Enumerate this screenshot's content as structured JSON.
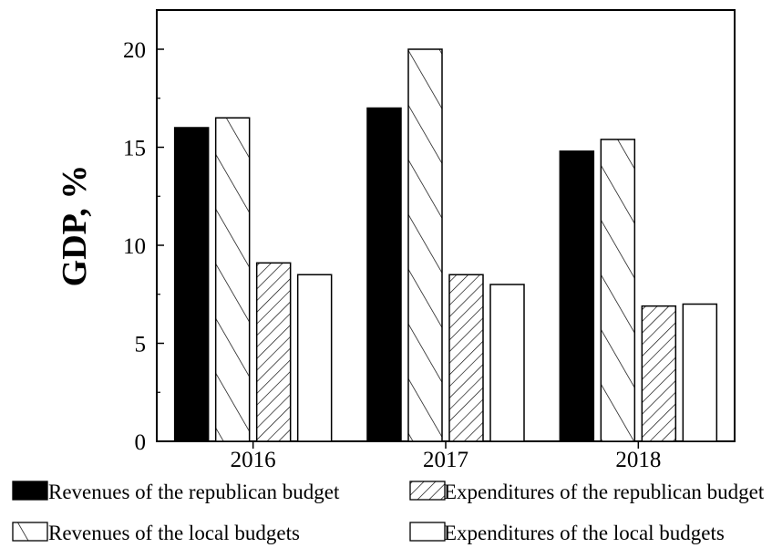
{
  "chart_data": {
    "type": "bar",
    "categories": [
      "2016",
      "2017",
      "2018"
    ],
    "series": [
      {
        "name": "Revenues of the republican budget",
        "values": [
          16.0,
          17.0,
          14.8
        ],
        "fill": "solid"
      },
      {
        "name": "Revenues of the local budgets",
        "values": [
          16.5,
          20.0,
          15.4
        ],
        "fill": "hatch-forward"
      },
      {
        "name": "Expenditures of the republican budget",
        "values": [
          9.1,
          8.5,
          6.9
        ],
        "fill": "hatch-back"
      },
      {
        "name": "Expenditures of the local budgets",
        "values": [
          8.5,
          8.0,
          7.0
        ],
        "fill": "empty"
      }
    ],
    "ylabel": "GDP, %",
    "xlabel": "",
    "ylim": [
      0,
      22
    ],
    "yticks": [
      0,
      5,
      10,
      15,
      20
    ],
    "grid": false,
    "legend_position": "bottom",
    "colors": {
      "bar_solid": "#000000",
      "stroke": "#000000",
      "background": "#ffffff"
    }
  }
}
